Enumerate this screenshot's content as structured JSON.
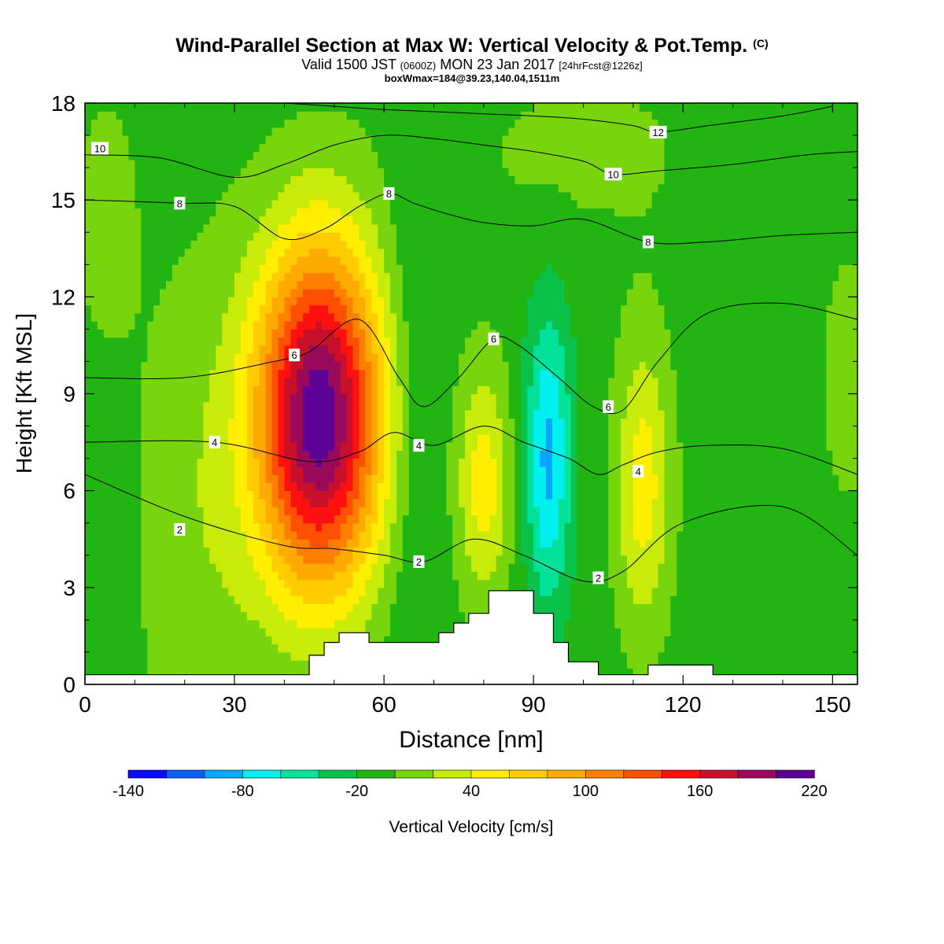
{
  "title": "Wind-Parallel Section at Max W: Vertical Velocity & Pot.Temp.",
  "title_mark": "(C)",
  "subtitle": {
    "prefix": "Valid 1500 JST",
    "utc": "(0600Z)",
    "date": "MON 23 Jan 2017",
    "forecast": "[24hrFcst@1226z]"
  },
  "box_info": "boxWmax=184@39.23,140.04,1511m",
  "chart_data": {
    "type": "heatmap",
    "title": "Wind-Parallel Section at Max W: Vertical Velocity & Pot.Temp.",
    "xlabel": "Distance [nm]",
    "ylabel": "Height [Kft MSL]",
    "xlim": [
      0,
      155
    ],
    "ylim": [
      0,
      18
    ],
    "x_ticks": [
      0,
      30,
      60,
      90,
      120,
      150
    ],
    "y_ticks": [
      0,
      3,
      6,
      9,
      12,
      15,
      18
    ],
    "grid": false,
    "colorbar": {
      "label": "Vertical Velocity [cm/s]",
      "min": -140,
      "step": 20,
      "tick_labels": [
        "-140",
        "-80",
        "-20",
        "40",
        "100",
        "160",
        "220"
      ],
      "tick_values": [
        -140,
        -80,
        -20,
        40,
        100,
        160,
        220
      ],
      "colors": [
        "#0a0aff",
        "#0b5fff",
        "#09a6ff",
        "#00f0f0",
        "#00e29a",
        "#0ac24a",
        "#22b512",
        "#78d40c",
        "#c8eb0a",
        "#ffee00",
        "#ffcc00",
        "#ffaa00",
        "#ff7f00",
        "#ff4f00",
        "#ff1010",
        "#c8102a",
        "#9a0a5a",
        "#5c0096"
      ]
    },
    "w_field": {
      "units": "cm/s",
      "background": -10,
      "features": [
        {
          "x": 47,
          "z": 8.3,
          "sx": 9.0,
          "sz": 3.8,
          "amp": 225
        },
        {
          "x": 80,
          "z": 6.2,
          "sx": 3.8,
          "sz": 2.6,
          "amp": 60
        },
        {
          "x": 112,
          "z": 6.2,
          "sx": 4.0,
          "sz": 3.2,
          "amp": 60
        },
        {
          "x": 93,
          "z": 7.0,
          "sx": 3.2,
          "sz": 3.2,
          "amp": -75
        },
        {
          "x": 66,
          "z": 9.0,
          "sx": 4.0,
          "sz": 8.0,
          "amp": -18
        },
        {
          "x": 23,
          "z": 5.0,
          "sx": 9.0,
          "sz": 6.0,
          "amp": 25
        },
        {
          "x": 4,
          "z": 14.5,
          "sx": 5.0,
          "sz": 3.0,
          "amp": 18
        },
        {
          "x": 153,
          "z": 9.5,
          "sx": 4.0,
          "sz": 3.0,
          "amp": 20
        },
        {
          "x": 100,
          "z": 16.5,
          "sx": 20.0,
          "sz": 2.2,
          "amp": 14
        }
      ]
    },
    "theta_contours": [
      {
        "level": 2,
        "label_at": [
          [
            19,
            4.8
          ],
          [
            67,
            3.8
          ],
          [
            103,
            3.3
          ]
        ],
        "points": [
          [
            0,
            6.5
          ],
          [
            20,
            5.2
          ],
          [
            40,
            4.3
          ],
          [
            50,
            4.2
          ],
          [
            60,
            4.0
          ],
          [
            68,
            3.8
          ],
          [
            78,
            4.5
          ],
          [
            88,
            4.0
          ],
          [
            100,
            3.2
          ],
          [
            108,
            3.5
          ],
          [
            120,
            5.0
          ],
          [
            140,
            5.5
          ],
          [
            155,
            4.0
          ]
        ]
      },
      {
        "level": 4,
        "label_at": [
          [
            26,
            7.5
          ],
          [
            67,
            7.4
          ],
          [
            111,
            6.6
          ]
        ],
        "points": [
          [
            0,
            7.5
          ],
          [
            26,
            7.5
          ],
          [
            45,
            6.9
          ],
          [
            55,
            7.2
          ],
          [
            62,
            7.8
          ],
          [
            70,
            7.4
          ],
          [
            80,
            8.0
          ],
          [
            88,
            7.5
          ],
          [
            97,
            7.0
          ],
          [
            103,
            6.5
          ],
          [
            108,
            6.8
          ],
          [
            115,
            7.2
          ],
          [
            125,
            7.4
          ],
          [
            140,
            7.3
          ],
          [
            155,
            6.5
          ]
        ]
      },
      {
        "level": 6,
        "label_at": [
          [
            42,
            10.2
          ],
          [
            82,
            10.7
          ],
          [
            105,
            8.6
          ]
        ],
        "points": [
          [
            0,
            9.5
          ],
          [
            20,
            9.5
          ],
          [
            38,
            10.0
          ],
          [
            45,
            10.3
          ],
          [
            55,
            11.3
          ],
          [
            63,
            9.5
          ],
          [
            68,
            8.6
          ],
          [
            75,
            9.5
          ],
          [
            82,
            10.7
          ],
          [
            87,
            10.5
          ],
          [
            95,
            9.5
          ],
          [
            102,
            8.6
          ],
          [
            108,
            8.5
          ],
          [
            115,
            10.0
          ],
          [
            125,
            11.5
          ],
          [
            140,
            11.8
          ],
          [
            155,
            11.3
          ]
        ]
      },
      {
        "level": 8,
        "label_at": [
          [
            19,
            14.9
          ],
          [
            61,
            15.2
          ],
          [
            113,
            13.7
          ]
        ],
        "points": [
          [
            0,
            15.0
          ],
          [
            19,
            14.9
          ],
          [
            30,
            14.8
          ],
          [
            40,
            13.8
          ],
          [
            48,
            14.1
          ],
          [
            55,
            14.8
          ],
          [
            61,
            15.2
          ],
          [
            66,
            14.9
          ],
          [
            72,
            14.6
          ],
          [
            80,
            14.3
          ],
          [
            90,
            14.2
          ],
          [
            100,
            14.4
          ],
          [
            113,
            13.7
          ],
          [
            125,
            13.7
          ],
          [
            140,
            13.9
          ],
          [
            155,
            14.0
          ]
        ]
      },
      {
        "level": 10,
        "label_at": [
          [
            3,
            16.6
          ],
          [
            106,
            15.8
          ]
        ],
        "points": [
          [
            0,
            16.4
          ],
          [
            15,
            16.3
          ],
          [
            30,
            15.7
          ],
          [
            40,
            16.1
          ],
          [
            50,
            16.7
          ],
          [
            60,
            17.0
          ],
          [
            70,
            16.9
          ],
          [
            80,
            16.7
          ],
          [
            90,
            16.5
          ],
          [
            100,
            16.2
          ],
          [
            106,
            15.8
          ],
          [
            115,
            15.9
          ],
          [
            130,
            16.1
          ],
          [
            145,
            16.4
          ],
          [
            155,
            16.5
          ]
        ]
      },
      {
        "level": 12,
        "label_at": [
          [
            115,
            17.1
          ]
        ],
        "points": [
          [
            40,
            18.0
          ],
          [
            50,
            17.9
          ],
          [
            60,
            17.8
          ],
          [
            75,
            17.7
          ],
          [
            90,
            17.6
          ],
          [
            100,
            17.5
          ],
          [
            110,
            17.3
          ],
          [
            115,
            17.1
          ],
          [
            125,
            17.3
          ],
          [
            140,
            17.6
          ],
          [
            150,
            17.9
          ]
        ]
      }
    ],
    "terrain_steps": [
      [
        0,
        0.3
      ],
      [
        45,
        0.9
      ],
      [
        48,
        1.3
      ],
      [
        51,
        1.6
      ],
      [
        57,
        1.3
      ],
      [
        71,
        1.6
      ],
      [
        74,
        1.9
      ],
      [
        77,
        2.2
      ],
      [
        81,
        2.9
      ],
      [
        90,
        2.2
      ],
      [
        94,
        1.3
      ],
      [
        97,
        0.7
      ],
      [
        103,
        0.3
      ],
      [
        113,
        0.6
      ],
      [
        126,
        0.3
      ],
      [
        155,
        0.3
      ]
    ]
  }
}
